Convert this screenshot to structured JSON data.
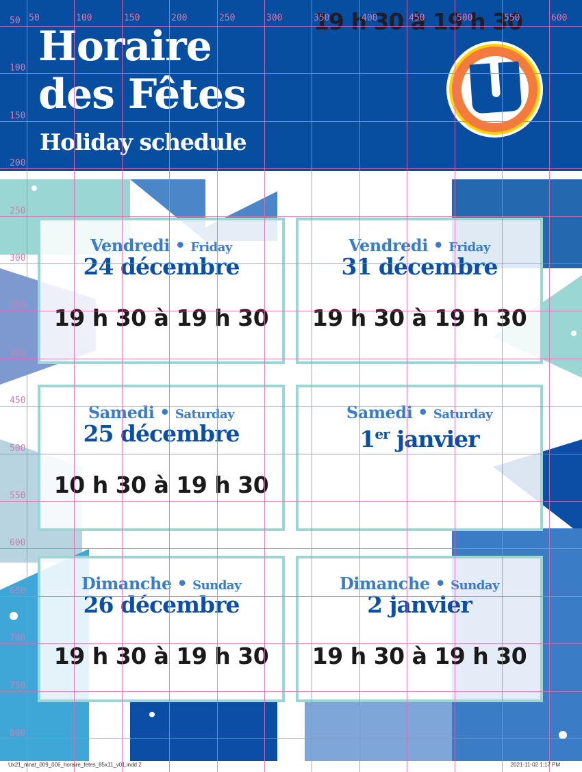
{
  "header": {
    "title_line1": "Horaire",
    "title_line2": "des Fêtes",
    "subtitle": "Holiday schedule",
    "overprint_hours": "19 h 30 à 19 h 30"
  },
  "logo": {
    "letter": "U",
    "colors": {
      "ring_outer": "#ffd200",
      "ring": "#f47b3e",
      "fill": "#074ea0"
    }
  },
  "colors": {
    "brand_blue": "#074ea0",
    "card_border": "#9ad6d3",
    "day_text": "#3b7cc6",
    "date_text": "#0a4fa5",
    "grid": "#e06bb3"
  },
  "cards": [
    {
      "day_fr": "Vendredi",
      "day_en": "Friday",
      "date": "24 décembre",
      "date_sup": "",
      "hours": "19 h 30 à 19 h 30"
    },
    {
      "day_fr": "Vendredi",
      "day_en": "Friday",
      "date": "31 décembre",
      "date_sup": "",
      "hours": "19 h 30 à 19 h 30"
    },
    {
      "day_fr": "Samedi",
      "day_en": "Saturday",
      "date": "25 décembre",
      "date_sup": "",
      "hours": "10 h 30 à 19 h 30"
    },
    {
      "day_fr": "Samedi",
      "day_en": "Saturday",
      "date_pre": "1",
      "date_sup": "er",
      "date": " janvier",
      "hours": ""
    },
    {
      "day_fr": "Dimanche",
      "day_en": "Sunday",
      "date": "26 décembre",
      "date_sup": "",
      "hours": "19 h 30 à 19 h 30"
    },
    {
      "day_fr": "Dimanche",
      "day_en": "Sunday",
      "date": "2 janvier",
      "date_sup": "",
      "hours": "19 h 30 à 19 h 30"
    }
  ],
  "ruler": {
    "top": [
      "50",
      "100",
      "150",
      "200",
      "250",
      "300",
      "350",
      "400",
      "450",
      "500",
      "550",
      "600"
    ],
    "left": [
      "50",
      "100",
      "150",
      "200",
      "250",
      "300",
      "350",
      "400",
      "450",
      "500",
      "550",
      "600",
      "650",
      "700",
      "750",
      "800"
    ]
  },
  "footer": {
    "file": "Ux21_mnat_009_006_horaire_fetes_85x11_v01.indd  2",
    "timestamp": "2021-11-02   1:17 PM"
  }
}
